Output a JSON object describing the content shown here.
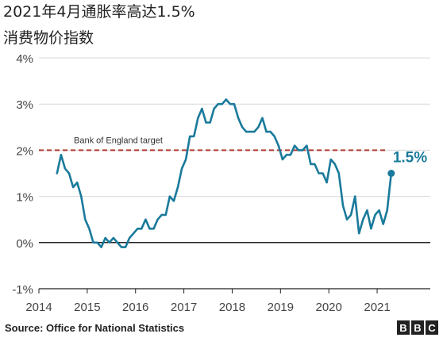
{
  "header": {
    "title": "2021年4月通胀率高达1.5%",
    "subtitle": "消费物价指数"
  },
  "footer": {
    "source": "Source: Office for National Statistics",
    "logo": [
      "B",
      "B",
      "C"
    ]
  },
  "colors": {
    "line": "#1a7a9b",
    "target_line": "#b23a2f",
    "grid": "#d8d8d8",
    "axis": "#222222"
  },
  "chart_data": {
    "type": "line",
    "title": "2021年4月通胀率高达1.5%",
    "subtitle": "消费物价指数",
    "y_ticks": [
      "4%",
      "3%",
      "2%",
      "1%",
      "0%",
      "-1%"
    ],
    "y_tick_values": [
      4,
      3,
      2,
      1,
      0,
      -1
    ],
    "x_ticks": [
      "2014",
      "2015",
      "2016",
      "2017",
      "2018",
      "2019",
      "2020",
      "2021"
    ],
    "x_tick_values": [
      2014,
      2015,
      2016,
      2017,
      2018,
      2019,
      2020,
      2021
    ],
    "xlim": [
      2014,
      2022.1
    ],
    "ylim": [
      -1,
      4
    ],
    "grid": true,
    "target": {
      "value": 2,
      "label": "Bank of England target"
    },
    "end_label": "1.5%",
    "series": [
      {
        "x": [
          2014.375,
          2014.458,
          2014.542,
          2014.625,
          2014.708,
          2014.792,
          2014.875,
          2014.958,
          2015.042,
          2015.125,
          2015.208,
          2015.292,
          2015.375,
          2015.458,
          2015.542,
          2015.625,
          2015.708,
          2015.792,
          2015.875,
          2015.958,
          2016.042,
          2016.125,
          2016.208,
          2016.292,
          2016.375,
          2016.458,
          2016.542,
          2016.625,
          2016.708,
          2016.792,
          2016.875,
          2016.958,
          2017.042,
          2017.125,
          2017.208,
          2017.292,
          2017.375,
          2017.458,
          2017.542,
          2017.625,
          2017.708,
          2017.792,
          2017.875,
          2017.958,
          2018.042,
          2018.125,
          2018.208,
          2018.292,
          2018.375,
          2018.458,
          2018.542,
          2018.625,
          2018.708,
          2018.792,
          2018.875,
          2018.958,
          2019.042,
          2019.125,
          2019.208,
          2019.292,
          2019.375,
          2019.458,
          2019.542,
          2019.625,
          2019.708,
          2019.792,
          2019.875,
          2019.958,
          2020.042,
          2020.125,
          2020.208,
          2020.292,
          2020.375,
          2020.458,
          2020.542,
          2020.625,
          2020.708,
          2020.792,
          2020.875,
          2020.958,
          2021.042,
          2021.125,
          2021.208,
          2021.292
        ],
        "values": [
          1.5,
          1.9,
          1.6,
          1.5,
          1.2,
          1.3,
          1.0,
          0.5,
          0.3,
          0.0,
          0.0,
          -0.1,
          0.1,
          0.0,
          0.1,
          0.0,
          -0.1,
          -0.1,
          0.1,
          0.2,
          0.3,
          0.3,
          0.5,
          0.3,
          0.3,
          0.5,
          0.6,
          0.6,
          1.0,
          0.9,
          1.2,
          1.6,
          1.8,
          2.3,
          2.3,
          2.7,
          2.9,
          2.6,
          2.6,
          2.9,
          3.0,
          3.0,
          3.1,
          3.0,
          3.0,
          2.7,
          2.5,
          2.4,
          2.4,
          2.4,
          2.5,
          2.7,
          2.4,
          2.4,
          2.3,
          2.1,
          1.8,
          1.9,
          1.9,
          2.1,
          2.0,
          2.0,
          2.1,
          1.7,
          1.7,
          1.5,
          1.5,
          1.3,
          1.8,
          1.7,
          1.5,
          0.8,
          0.5,
          0.6,
          1.0,
          0.2,
          0.5,
          0.7,
          0.3,
          0.6,
          0.7,
          0.4,
          0.7,
          1.5
        ]
      }
    ]
  }
}
